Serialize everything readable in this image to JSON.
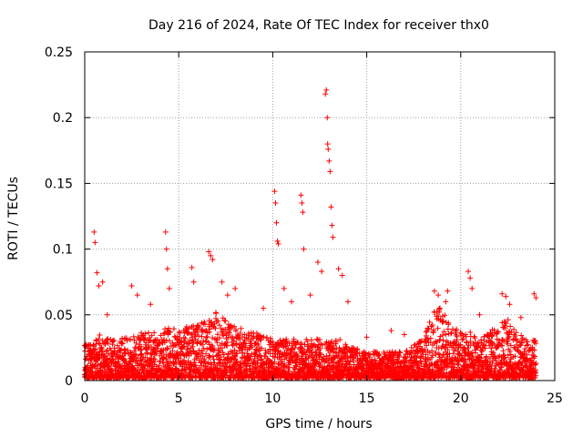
{
  "chart_data": {
    "type": "scatter",
    "title": "Day 216 of 2024, Rate Of TEC Index for receiver thx0",
    "xlabel": "GPS time / hours",
    "ylabel": "ROTI / TECUs",
    "xlim": [
      0,
      25
    ],
    "ylim": [
      0,
      0.25
    ],
    "x_ticks": [
      0,
      5,
      10,
      15,
      20,
      25
    ],
    "x_tick_labels": [
      "0",
      "5",
      "10",
      "15",
      "20",
      "25"
    ],
    "y_ticks": [
      0,
      0.05,
      0.1,
      0.15,
      0.2,
      0.25
    ],
    "y_tick_labels": [
      "0",
      "0.05",
      "0.1",
      "0.15",
      "0.2",
      "0.25"
    ],
    "grid": true,
    "marker": "+",
    "color": "#ff0000",
    "series": [
      {
        "name": "ROTI",
        "base_envelope": {
          "x": [
            0,
            0.5,
            1,
            1.5,
            2,
            3,
            4,
            4.5,
            5,
            5.5,
            6,
            6.5,
            7,
            7.5,
            8,
            9,
            10,
            11,
            12,
            13,
            13.5,
            14,
            15,
            16,
            17,
            17.5,
            18,
            18.5,
            19,
            19.5,
            20,
            20.5,
            21,
            21.5,
            22,
            22.5,
            23,
            23.5,
            24
          ],
          "y": [
            0.025,
            0.03,
            0.035,
            0.03,
            0.03,
            0.035,
            0.035,
            0.04,
            0.035,
            0.04,
            0.04,
            0.045,
            0.05,
            0.045,
            0.04,
            0.035,
            0.03,
            0.03,
            0.03,
            0.03,
            0.03,
            0.025,
            0.02,
            0.02,
            0.02,
            0.025,
            0.03,
            0.05,
            0.055,
            0.04,
            0.035,
            0.035,
            0.03,
            0.035,
            0.04,
            0.045,
            0.035,
            0.03,
            0.03
          ]
        },
        "spikes": [
          {
            "x": 0.5,
            "y": 0.113
          },
          {
            "x": 0.55,
            "y": 0.105
          },
          {
            "x": 0.65,
            "y": 0.082
          },
          {
            "x": 0.75,
            "y": 0.072
          },
          {
            "x": 0.95,
            "y": 0.075
          },
          {
            "x": 1.2,
            "y": 0.05
          },
          {
            "x": 2.5,
            "y": 0.072
          },
          {
            "x": 2.8,
            "y": 0.065
          },
          {
            "x": 3.5,
            "y": 0.058
          },
          {
            "x": 4.3,
            "y": 0.113
          },
          {
            "x": 4.35,
            "y": 0.1
          },
          {
            "x": 4.4,
            "y": 0.085
          },
          {
            "x": 4.5,
            "y": 0.07
          },
          {
            "x": 5.7,
            "y": 0.086
          },
          {
            "x": 5.8,
            "y": 0.075
          },
          {
            "x": 6.6,
            "y": 0.098
          },
          {
            "x": 6.7,
            "y": 0.095
          },
          {
            "x": 6.8,
            "y": 0.092
          },
          {
            "x": 7.3,
            "y": 0.075
          },
          {
            "x": 7.6,
            "y": 0.065
          },
          {
            "x": 8.0,
            "y": 0.07
          },
          {
            "x": 9.5,
            "y": 0.055
          },
          {
            "x": 10.1,
            "y": 0.144
          },
          {
            "x": 10.15,
            "y": 0.135
          },
          {
            "x": 10.2,
            "y": 0.12
          },
          {
            "x": 10.25,
            "y": 0.106
          },
          {
            "x": 10.3,
            "y": 0.104
          },
          {
            "x": 10.6,
            "y": 0.07
          },
          {
            "x": 11.0,
            "y": 0.06
          },
          {
            "x": 11.5,
            "y": 0.141
          },
          {
            "x": 11.55,
            "y": 0.135
          },
          {
            "x": 11.6,
            "y": 0.128
          },
          {
            "x": 11.65,
            "y": 0.1
          },
          {
            "x": 12.0,
            "y": 0.065
          },
          {
            "x": 12.4,
            "y": 0.09
          },
          {
            "x": 12.6,
            "y": 0.083
          },
          {
            "x": 12.8,
            "y": 0.218
          },
          {
            "x": 12.85,
            "y": 0.221
          },
          {
            "x": 12.9,
            "y": 0.2
          },
          {
            "x": 12.92,
            "y": 0.18
          },
          {
            "x": 12.95,
            "y": 0.176
          },
          {
            "x": 13.0,
            "y": 0.167
          },
          {
            "x": 13.05,
            "y": 0.159
          },
          {
            "x": 13.1,
            "y": 0.132
          },
          {
            "x": 13.15,
            "y": 0.118
          },
          {
            "x": 13.2,
            "y": 0.109
          },
          {
            "x": 13.5,
            "y": 0.085
          },
          {
            "x": 13.7,
            "y": 0.08
          },
          {
            "x": 14.0,
            "y": 0.06
          },
          {
            "x": 15.0,
            "y": 0.033
          },
          {
            "x": 16.3,
            "y": 0.038
          },
          {
            "x": 17.0,
            "y": 0.035
          },
          {
            "x": 18.6,
            "y": 0.068
          },
          {
            "x": 18.8,
            "y": 0.065
          },
          {
            "x": 19.2,
            "y": 0.06
          },
          {
            "x": 19.3,
            "y": 0.068
          },
          {
            "x": 20.4,
            "y": 0.083
          },
          {
            "x": 20.5,
            "y": 0.078
          },
          {
            "x": 20.6,
            "y": 0.07
          },
          {
            "x": 21.0,
            "y": 0.05
          },
          {
            "x": 22.2,
            "y": 0.066
          },
          {
            "x": 22.4,
            "y": 0.064
          },
          {
            "x": 22.6,
            "y": 0.058
          },
          {
            "x": 23.2,
            "y": 0.048
          },
          {
            "x": 23.9,
            "y": 0.066
          },
          {
            "x": 24.0,
            "y": 0.063
          }
        ]
      }
    ]
  }
}
